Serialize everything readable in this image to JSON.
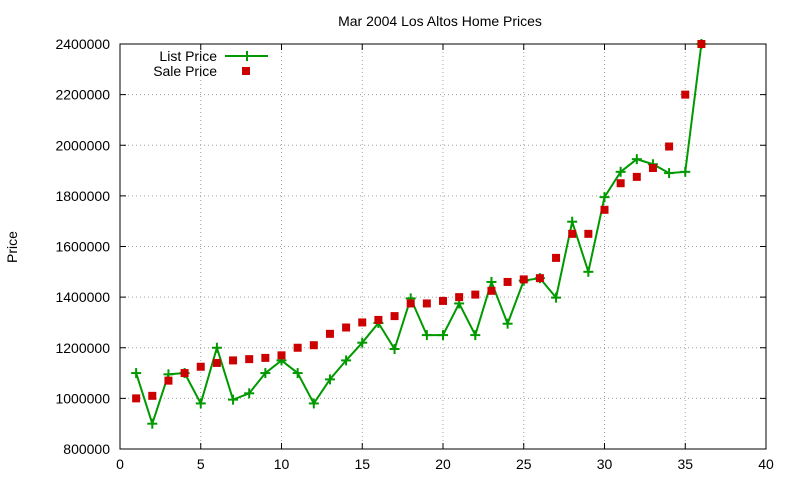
{
  "chart_data": {
    "type": "line",
    "title": "Mar 2004 Los Altos Home Prices",
    "xlabel": "",
    "ylabel": "Price",
    "xlim": [
      0,
      40
    ],
    "ylim": [
      800000,
      2400000
    ],
    "x_ticks": [
      0,
      5,
      10,
      15,
      20,
      25,
      30,
      35,
      40
    ],
    "y_ticks": [
      800000,
      1000000,
      1200000,
      1400000,
      1600000,
      1800000,
      2000000,
      2200000,
      2400000
    ],
    "grid": true,
    "legend_position": "top-left",
    "series": [
      {
        "name": "List Price",
        "style": "line-plus",
        "color": "#009900",
        "x": [
          1,
          2,
          3,
          4,
          5,
          6,
          7,
          8,
          9,
          10,
          11,
          12,
          13,
          14,
          15,
          16,
          17,
          18,
          19,
          20,
          21,
          22,
          23,
          24,
          25,
          26,
          27,
          28,
          29,
          30,
          31,
          32,
          33,
          34,
          35,
          36
        ],
        "values": [
          1100000,
          900000,
          1095000,
          1100000,
          980000,
          1200000,
          995000,
          1020000,
          1100000,
          1150000,
          1100000,
          980000,
          1075000,
          1150000,
          1220000,
          1298000,
          1195000,
          1395000,
          1250000,
          1250000,
          1375000,
          1250000,
          1460000,
          1295000,
          1465000,
          1475000,
          1398000,
          1698000,
          1500000,
          1795000,
          1895000,
          1945000,
          1925000,
          1890000,
          1895000,
          2400000
        ]
      },
      {
        "name": "Sale Price",
        "style": "square",
        "color": "#cc0000",
        "x": [
          1,
          2,
          3,
          4,
          5,
          6,
          7,
          8,
          9,
          10,
          11,
          12,
          13,
          14,
          15,
          16,
          17,
          18,
          19,
          20,
          21,
          22,
          23,
          24,
          25,
          26,
          27,
          28,
          29,
          30,
          31,
          32,
          33,
          34,
          35,
          36
        ],
        "values": [
          1000000,
          1010000,
          1070000,
          1100000,
          1125000,
          1140000,
          1150000,
          1155000,
          1160000,
          1170000,
          1200000,
          1210000,
          1255000,
          1280000,
          1300000,
          1310000,
          1325000,
          1375000,
          1375000,
          1385000,
          1400000,
          1410000,
          1425000,
          1460000,
          1470000,
          1475000,
          1555000,
          1650000,
          1650000,
          1745000,
          1850000,
          1875000,
          1910000,
          1995000,
          2200000,
          2400000
        ]
      }
    ]
  }
}
